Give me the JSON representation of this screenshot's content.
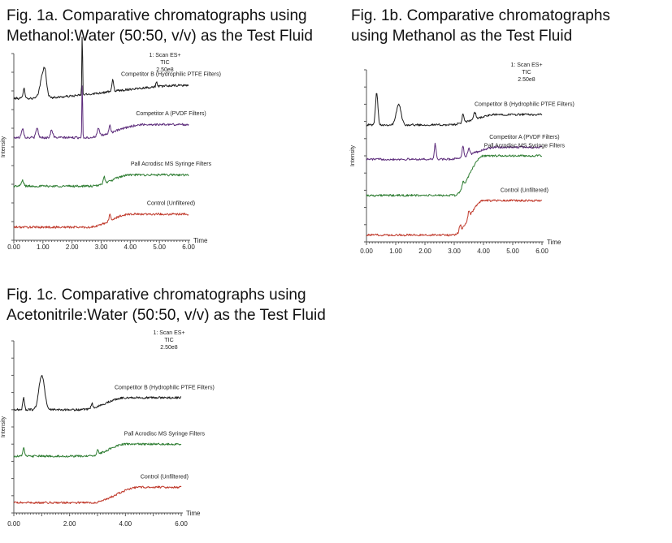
{
  "colors": {
    "competitor_b": "#1c1c1c",
    "competitor_a": "#5b2a7a",
    "pall": "#2e7d32",
    "control": "#c0392b"
  },
  "chart_data": [
    {
      "type": "line",
      "id": "fig1a",
      "title_lines": [
        "Fig. 1a. Comparative chromatographs using",
        "Methanol:Water (50:50, v/v) as the Test Fluid"
      ],
      "xlabel": "Time",
      "ylabel": "Intensity",
      "xlim": [
        0,
        6
      ],
      "x_ticks": [
        "0.00",
        "1.00",
        "2.00",
        "3.00",
        "4.00",
        "5.00",
        "6.00"
      ],
      "scan_info": [
        "1: Scan ES+",
        "TIC",
        "2.50e8"
      ],
      "series": [
        {
          "name": "Competitor B (Hydrophilic PTFE Filters)",
          "color_key": "competitor_b",
          "offset": 0.76,
          "base": 0.0,
          "end": 0.07,
          "rise_start": 0.5,
          "rise_end": 6.0,
          "peaks": [
            [
              0.35,
              0.06,
              0.03
            ],
            [
              1.0,
              0.13,
              0.09
            ],
            [
              1.08,
              0.06,
              0.05
            ],
            [
              2.35,
              0.35,
              0.012
            ],
            [
              3.4,
              0.06,
              0.03
            ],
            [
              4.9,
              0.03,
              0.02
            ]
          ]
        },
        {
          "name": "Competitor A (PVDF Filters)",
          "color_key": "competitor_a",
          "offset": 0.55,
          "base": 0.0,
          "end": 0.07,
          "rise_start": 2.5,
          "rise_end": 4.5,
          "peaks": [
            [
              0.3,
              0.05,
              0.04
            ],
            [
              0.8,
              0.05,
              0.04
            ],
            [
              1.3,
              0.04,
              0.04
            ],
            [
              2.35,
              0.32,
              0.012
            ],
            [
              2.9,
              0.04,
              0.04
            ],
            [
              3.3,
              0.04,
              0.03
            ]
          ]
        },
        {
          "name": "Pall Acrodisc MS Syringe Filters",
          "color_key": "pall",
          "offset": 0.29,
          "base": 0.0,
          "end": 0.06,
          "rise_start": 2.7,
          "rise_end": 4.0,
          "peaks": [
            [
              0.3,
              0.03,
              0.04
            ],
            [
              3.1,
              0.04,
              0.03
            ]
          ]
        },
        {
          "name": "Control (Unfiltered)",
          "color_key": "control",
          "offset": 0.07,
          "base": 0.0,
          "end": 0.07,
          "rise_start": 2.6,
          "rise_end": 4.0,
          "peaks": [
            [
              3.3,
              0.03,
              0.03
            ]
          ]
        }
      ]
    },
    {
      "type": "line",
      "id": "fig1b",
      "title_lines": [
        "Fig. 1b. Comparative chromatographs",
        "using Methanol as the Test Fluid"
      ],
      "xlabel": "Time",
      "ylabel": "Intensity",
      "xlim": [
        0,
        6
      ],
      "x_ticks": [
        "0.00",
        "1.00",
        "2.00",
        "3.00",
        "4.00",
        "5.00",
        "6.00"
      ],
      "scan_info": [
        "1: Scan ES+",
        "TIC",
        "2.50e8"
      ],
      "series": [
        {
          "name": "Competitor B (Hydrophilic PTFE Filters)",
          "color_key": "competitor_b",
          "offset": 0.68,
          "base": 0.0,
          "end": 0.06,
          "rise_start": 2.8,
          "rise_end": 4.5,
          "peaks": [
            [
              0.35,
              0.19,
              0.04
            ],
            [
              1.1,
              0.12,
              0.08
            ],
            [
              3.3,
              0.05,
              0.03
            ],
            [
              3.7,
              0.04,
              0.04
            ]
          ]
        },
        {
          "name": "Competitor A (PVDF Filters)",
          "color_key": "competitor_a",
          "offset": 0.48,
          "base": 0.0,
          "end": 0.07,
          "rise_start": 2.8,
          "rise_end": 4.5,
          "peaks": [
            [
              2.35,
              0.09,
              0.03
            ],
            [
              3.3,
              0.06,
              0.03
            ],
            [
              3.5,
              0.04,
              0.03
            ]
          ]
        },
        {
          "name": "Pall Acrodisc MS Syringe Filters",
          "color_key": "pall",
          "offset": 0.27,
          "base": 0.0,
          "end": 0.23,
          "rise_start": 3.0,
          "rise_end": 4.0,
          "peaks": [
            [
              3.3,
              0.03,
              0.03
            ]
          ]
        },
        {
          "name": "Control (Unfiltered)",
          "color_key": "control",
          "offset": 0.04,
          "base": 0.0,
          "end": 0.2,
          "rise_start": 3.0,
          "rise_end": 4.0,
          "peaks": [
            [
              3.2,
              0.04,
              0.03
            ],
            [
              3.5,
              0.04,
              0.03
            ]
          ]
        }
      ]
    },
    {
      "type": "line",
      "id": "fig1c",
      "title_lines": [
        "Fig. 1c. Comparative chromatographs using",
        "Acetonitrile:Water (50:50, v/v) as the Test Fluid"
      ],
      "xlabel": "Time",
      "ylabel": "Intensity",
      "xlim": [
        0,
        6
      ],
      "x_ticks": [
        "0.00",
        "2.00",
        "4.00",
        "6.00"
      ],
      "scan_info": [
        "1: Scan ES+",
        "TIC",
        "2.50e8"
      ],
      "series": [
        {
          "name": "Competitor B (Hydrophilic PTFE Filters)",
          "color_key": "competitor_b",
          "offset": 0.6,
          "base": 0.0,
          "end": 0.07,
          "rise_start": 2.5,
          "rise_end": 4.0,
          "peaks": [
            [
              0.35,
              0.07,
              0.03
            ],
            [
              1.0,
              0.2,
              0.1
            ],
            [
              2.8,
              0.03,
              0.03
            ]
          ]
        },
        {
          "name": "Pall Acrodisc MS Syringe Filters",
          "color_key": "pall",
          "offset": 0.33,
          "base": 0.0,
          "end": 0.07,
          "rise_start": 2.7,
          "rise_end": 4.0,
          "peaks": [
            [
              0.35,
              0.05,
              0.03
            ],
            [
              3.0,
              0.03,
              0.03
            ]
          ]
        },
        {
          "name": "Control (Unfiltered)",
          "color_key": "control",
          "offset": 0.06,
          "base": 0.0,
          "end": 0.09,
          "rise_start": 2.8,
          "rise_end": 4.5,
          "peaks": []
        }
      ]
    }
  ]
}
